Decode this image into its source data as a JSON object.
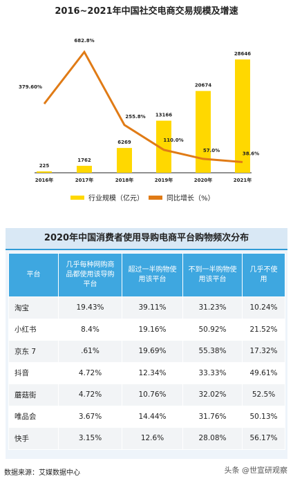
{
  "chart_data": [
    {
      "type": "bar+line",
      "title": "2016~2021年中国社交电商交易规模及增速",
      "categories": [
        "2016年",
        "2017年",
        "2018年",
        "2019年",
        "2020年",
        "2021年"
      ],
      "series": [
        {
          "name": "行业规模（亿元）",
          "type": "bar",
          "values": [
            225,
            1762,
            6269,
            13166,
            20674,
            28646
          ],
          "labels": [
            "225",
            "1762",
            "6269",
            "13166",
            "20674",
            "28646"
          ],
          "color": "#ffd800"
        },
        {
          "name": "同比增长（%）",
          "type": "line",
          "values": [
            379.6,
            682.8,
            255.8,
            110.0,
            57.0,
            38.6
          ],
          "labels": [
            "379.60%",
            "682.8%",
            "255.8%",
            "110.0%",
            "57.0%",
            "38.6%"
          ],
          "color": "#e07b16"
        }
      ],
      "bar_ylim": [
        0,
        30000
      ],
      "line_ylim": [
        0,
        720
      ],
      "grid": false,
      "legend_position": "bottom"
    },
    {
      "type": "table",
      "title": "2020年中国消费者使用导购电商平台购物频次分布",
      "columns": [
        "平台",
        "几乎每种网购商品都使用该导购平台",
        "超过一半购物使用该平台",
        "不到一半购物使用该平台",
        "几乎不使用"
      ],
      "rows": [
        [
          "淘宝",
          "19.43%",
          "39.11%",
          "31.23%",
          "10.24%"
        ],
        [
          "小红书",
          "8.4%",
          "19.16%",
          "50.92%",
          "21.52%"
        ],
        [
          "京东 7",
          ".61%",
          "19.69%",
          "55.38%",
          "17.32%"
        ],
        [
          "抖音",
          "4.72%",
          "12.34%",
          "33.33%",
          "49.61%"
        ],
        [
          "蘑菇街",
          "4.72%",
          "10.76%",
          "32.02%",
          "52.5%"
        ],
        [
          "唯品会",
          "3.67%",
          "14.44%",
          "31.76%",
          "50.13%"
        ],
        [
          "快手",
          "3.15%",
          "12.6%",
          "28.08%",
          "56.17%"
        ]
      ]
    }
  ],
  "footer": {
    "source": "数据来源：艾媒数据中心",
    "watermark": "头条 @世宣研观察"
  }
}
